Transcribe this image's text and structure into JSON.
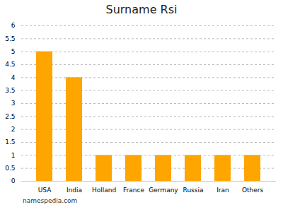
{
  "chart_data": {
    "type": "bar",
    "title": "Surname Rsi",
    "categories": [
      "USA",
      "India",
      "Holland",
      "France",
      "Germany",
      "Russia",
      "Iran",
      "Others"
    ],
    "values": [
      5,
      4,
      1,
      1,
      1,
      1,
      1,
      1
    ],
    "color": "#FFA500",
    "ylim": [
      0,
      6
    ],
    "yticks": [
      0,
      0.5,
      1,
      1.5,
      2,
      2.5,
      3,
      3.5,
      4,
      4.5,
      5,
      5.5,
      6
    ],
    "grid": true,
    "caption": "namespedia.com"
  }
}
